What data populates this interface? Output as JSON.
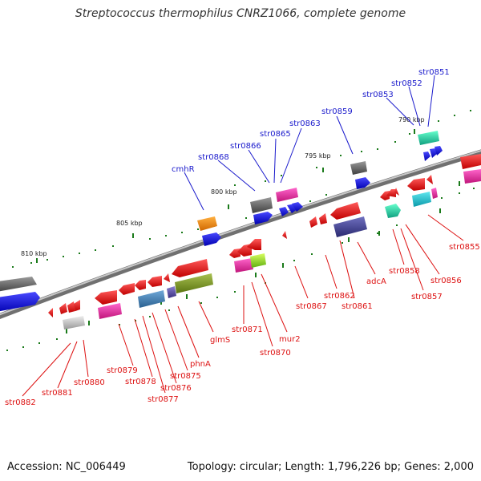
{
  "title": "Streptococcus thermophilus CNRZ1066, complete genome",
  "footer": {
    "accession": "Accession: NC_006449",
    "topology": "Topology: circular; Length: 1,796,226 bp; Genes: 2,000"
  },
  "colors": {
    "backbone": "#888888",
    "forward_label": "#1a1acc",
    "reverse_label": "#dd1111",
    "tick": "#1a7a1a"
  },
  "kbp_labels": [
    "790 kbp",
    "795 kbp",
    "800 kbp",
    "805 kbp",
    "810 kbp"
  ],
  "forward_gene_labels": [
    "str0851",
    "str0852",
    "str0853",
    "str0859",
    "str0863",
    "str0865",
    "str0866",
    "str0868",
    "cmhR"
  ],
  "reverse_gene_labels": [
    "str0855",
    "str0856",
    "str0857",
    "str0858",
    "adcA",
    "str0861",
    "str0862",
    "str0867",
    "mur2",
    "str0870",
    "str0871",
    "glmS",
    "phnA",
    "str0875",
    "str0876",
    "str0877",
    "str0878",
    "str0879",
    "str0880",
    "str0881",
    "str0882"
  ]
}
